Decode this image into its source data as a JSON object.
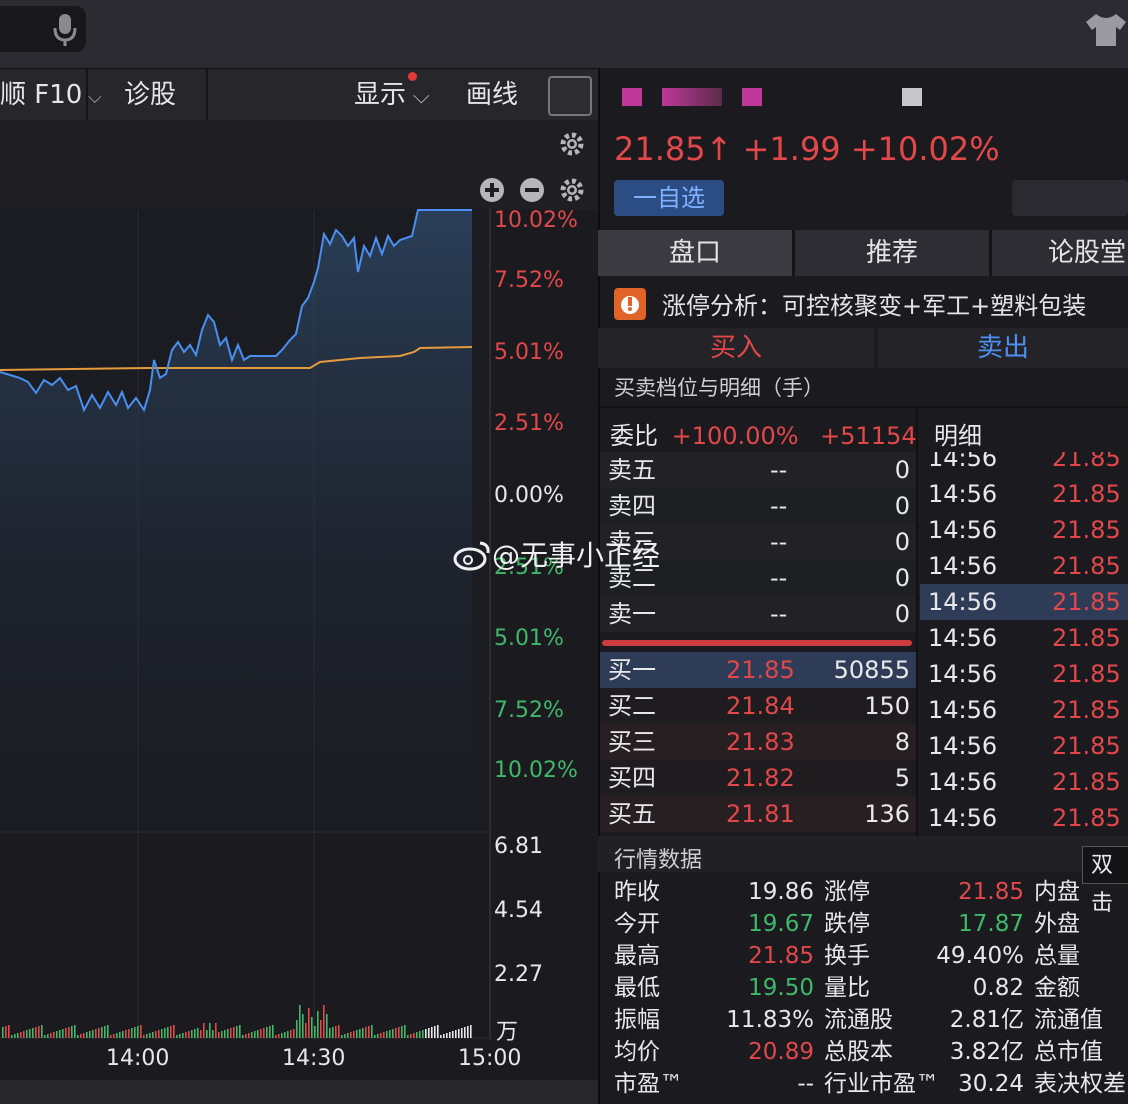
{
  "toolbar": {
    "f10_label": "顺 F10",
    "diagnose_label": "诊股",
    "display_label": "显示",
    "draw_label": "画线"
  },
  "chart": {
    "right_axis_price_pct": [
      "10.02%",
      "7.52%",
      "5.01%",
      "2.51%",
      "0.00%",
      "2.51%",
      "5.01%",
      "7.52%",
      "10.02%"
    ],
    "volume_axis": [
      "6.81",
      "4.54",
      "2.27",
      "万"
    ],
    "time_axis": [
      "14:00",
      "14:30",
      "15:00"
    ],
    "colors": {
      "price_line": "#4a8ff0",
      "avg_line": "#e59a3c",
      "up": "#e2484a",
      "down": "#3fb86a"
    }
  },
  "quote": {
    "price": "21.85",
    "arrow": "↑",
    "change": "+1.99",
    "change_pct": "+10.02%",
    "watch_button": "一自选"
  },
  "tabs": [
    {
      "label": "盘口",
      "active": true
    },
    {
      "label": "推荐",
      "active": false
    },
    {
      "label": "论股堂",
      "active": false
    }
  ],
  "analysis": {
    "label": "涨停分析：",
    "text": "可控核聚变+军工+塑料包装"
  },
  "trade": {
    "buy": "买入",
    "sell": "卖出"
  },
  "orderbook": {
    "title": "买卖档位与明细（手）",
    "ratio_label": "委比",
    "ratio_pct": "+100.00%",
    "ratio_diff": "+51154",
    "detail_title": "明细",
    "asks": [
      {
        "label": "卖五",
        "price": "--",
        "vol": "0"
      },
      {
        "label": "卖四",
        "price": "--",
        "vol": "0"
      },
      {
        "label": "卖三",
        "price": "--",
        "vol": "0"
      },
      {
        "label": "卖二",
        "price": "--",
        "vol": "0"
      },
      {
        "label": "卖一",
        "price": "--",
        "vol": "0"
      }
    ],
    "bids": [
      {
        "label": "买一",
        "price": "21.85",
        "vol": "50855"
      },
      {
        "label": "买二",
        "price": "21.84",
        "vol": "150"
      },
      {
        "label": "买三",
        "price": "21.83",
        "vol": "8"
      },
      {
        "label": "买四",
        "price": "21.82",
        "vol": "5"
      },
      {
        "label": "买五",
        "price": "21.81",
        "vol": "136"
      }
    ],
    "details": [
      {
        "time": "14:56",
        "price": "21.85"
      },
      {
        "time": "14:56",
        "price": "21.85"
      },
      {
        "time": "14:56",
        "price": "21.85"
      },
      {
        "time": "14:56",
        "price": "21.85"
      },
      {
        "time": "14:56",
        "price": "21.85"
      },
      {
        "time": "14:56",
        "price": "21.85"
      },
      {
        "time": "14:56",
        "price": "21.85"
      },
      {
        "time": "14:56",
        "price": "21.85"
      },
      {
        "time": "14:56",
        "price": "21.85"
      },
      {
        "time": "14:56",
        "price": "21.85"
      },
      {
        "time": "14:56",
        "price": "21.85"
      }
    ]
  },
  "market_data": {
    "title": "行情数据",
    "tooltip": "双击",
    "rows": [
      [
        "昨收",
        "19.86",
        "涨停",
        "21.85",
        "内盘"
      ],
      [
        "今开",
        "19.67",
        "跌停",
        "17.87",
        "外盘"
      ],
      [
        "最高",
        "21.85",
        "换手",
        "49.40%",
        "总量"
      ],
      [
        "最低",
        "19.50",
        "量比",
        "0.82",
        "金额"
      ],
      [
        "振幅",
        "11.83%",
        "流通股",
        "2.81亿",
        "流通值"
      ],
      [
        "均价",
        "20.89",
        "总股本",
        "3.82亿",
        "总市值"
      ],
      [
        "市盈™",
        "--",
        "行业市盈™",
        "30.24",
        "表决权差"
      ]
    ]
  },
  "watermark": "@无事小正经"
}
